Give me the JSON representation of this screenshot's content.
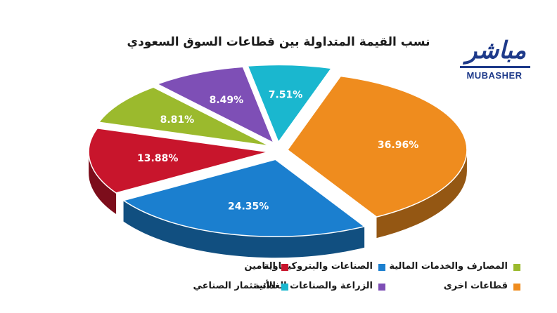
{
  "chart_data": {
    "type": "pie",
    "title": "نسب القيمة المتداولة بين قطاعات السوق السعودي",
    "slices": [
      {
        "name": "قطاعات اخرى",
        "value": 36.96,
        "label": "36.96%",
        "color": "#ef8c1e"
      },
      {
        "name": "الصناعات والبتروكيماوية",
        "value": 24.35,
        "label": "24.35%",
        "color": "#1b7fcf"
      },
      {
        "name": "التامين",
        "value": 13.88,
        "label": "13.88%",
        "color": "#c8152c"
      },
      {
        "name": "المصارف والخدمات المالية",
        "value": 8.81,
        "label": "8.81%",
        "color": "#9bba2d"
      },
      {
        "name": "الزراعة والصناعات الغذائية",
        "value": 8.49,
        "label": "8.49%",
        "color": "#7e4fb6"
      },
      {
        "name": "الأستثمار الصناعي",
        "value": 7.51,
        "label": "7.51%",
        "color": "#1ab7cf"
      }
    ],
    "legend_position": "bottom"
  },
  "logo": {
    "arabic": "مباشر",
    "english": "MUBASHER",
    "color": "#1e3a8a"
  }
}
